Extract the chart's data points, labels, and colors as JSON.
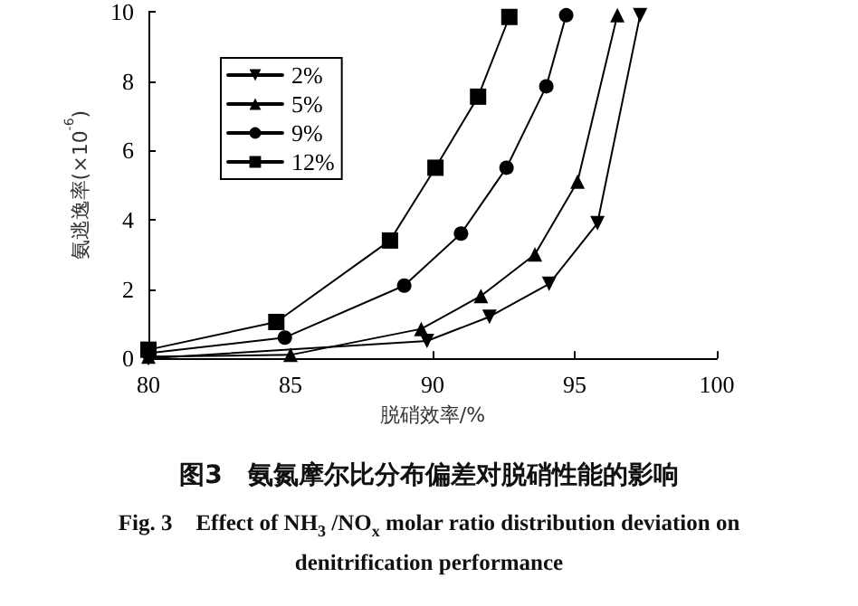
{
  "chart_data": {
    "type": "line",
    "title": "图3　氨氮摩尔比分布偏差对脱硝性能的影响",
    "subtitle": "Fig. 3　Effect of NH$_{3}$ /NO$_{x}$ molar ratio distribution deviation on denitrification performance",
    "xlabel": "脱硝效率/%",
    "ylabel": "氨逃逸率(×10$^{-6}$)",
    "xlim": [
      80,
      100
    ],
    "xticks": [
      80,
      85,
      90,
      95,
      100
    ],
    "ylim": [
      0,
      10
    ],
    "yticks": [
      0,
      2,
      4,
      6,
      8,
      10
    ],
    "grid": false,
    "legend": "top left",
    "line_style": "solid",
    "series": [
      {
        "name": "2%",
        "color": "#000000",
        "marker": "triangle_down",
        "x": [
          80,
          89.8,
          92.0,
          94.1,
          95.8,
          97.3
        ],
        "values": [
          0,
          0.5,
          1.2,
          2.15,
          3.9,
          9.9
        ]
      },
      {
        "name": "5%",
        "color": "#000000",
        "marker": "triangle",
        "x": [
          80,
          85,
          89.6,
          91.7,
          93.6,
          95.1,
          96.5
        ],
        "values": [
          0.05,
          0.1,
          0.85,
          1.8,
          3.0,
          5.1,
          9.9
        ]
      },
      {
        "name": "9%",
        "color": "#000000",
        "marker": "circle",
        "x": [
          80,
          84.8,
          89.0,
          91.0,
          92.6,
          94.0,
          94.7
        ],
        "values": [
          0.15,
          0.6,
          2.1,
          3.6,
          5.5,
          7.85,
          9.9
        ]
      },
      {
        "name": "12%",
        "color": "#000000",
        "marker": "square",
        "x": [
          80,
          84.5,
          88.5,
          90.1,
          91.6,
          92.7
        ],
        "values": [
          0.25,
          1.05,
          3.4,
          5.5,
          7.55,
          9.85
        ]
      }
    ]
  }
}
